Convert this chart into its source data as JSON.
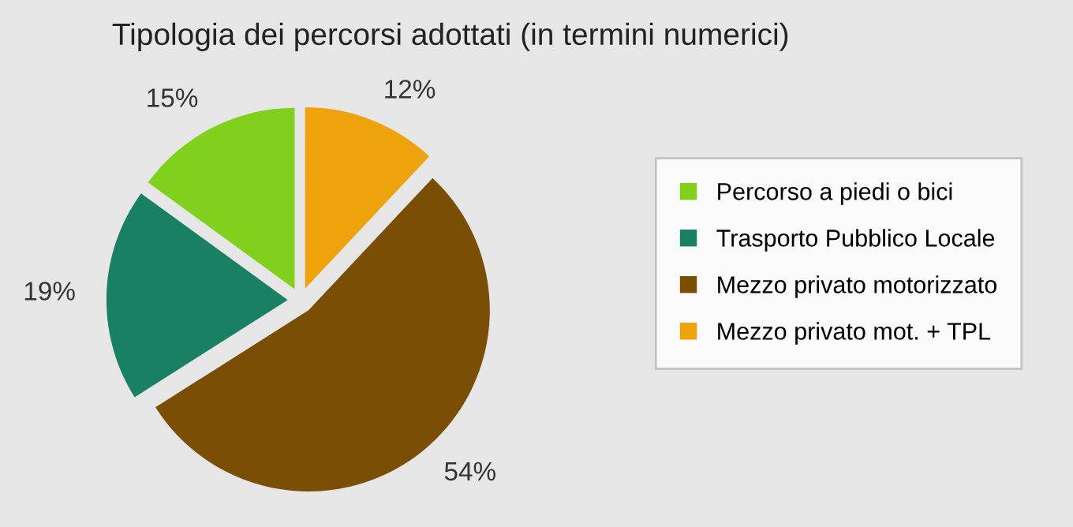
{
  "chart_data": {
    "type": "pie",
    "title": "Tipologia dei percorsi adottati (in termini numerici)",
    "categories": [
      "Percorso a piedi o bici",
      "Trasporto Pubblico Locale",
      "Mezzo privato motorizzato",
      "Mezzo privato mot. + TPL"
    ],
    "values": [
      15,
      19,
      54,
      12
    ],
    "colors": [
      "#82d01e",
      "#1a8064",
      "#7a4e05",
      "#eea30c"
    ],
    "value_labels": [
      "15%",
      "19%",
      "54%",
      "12%"
    ],
    "legend": "right"
  }
}
